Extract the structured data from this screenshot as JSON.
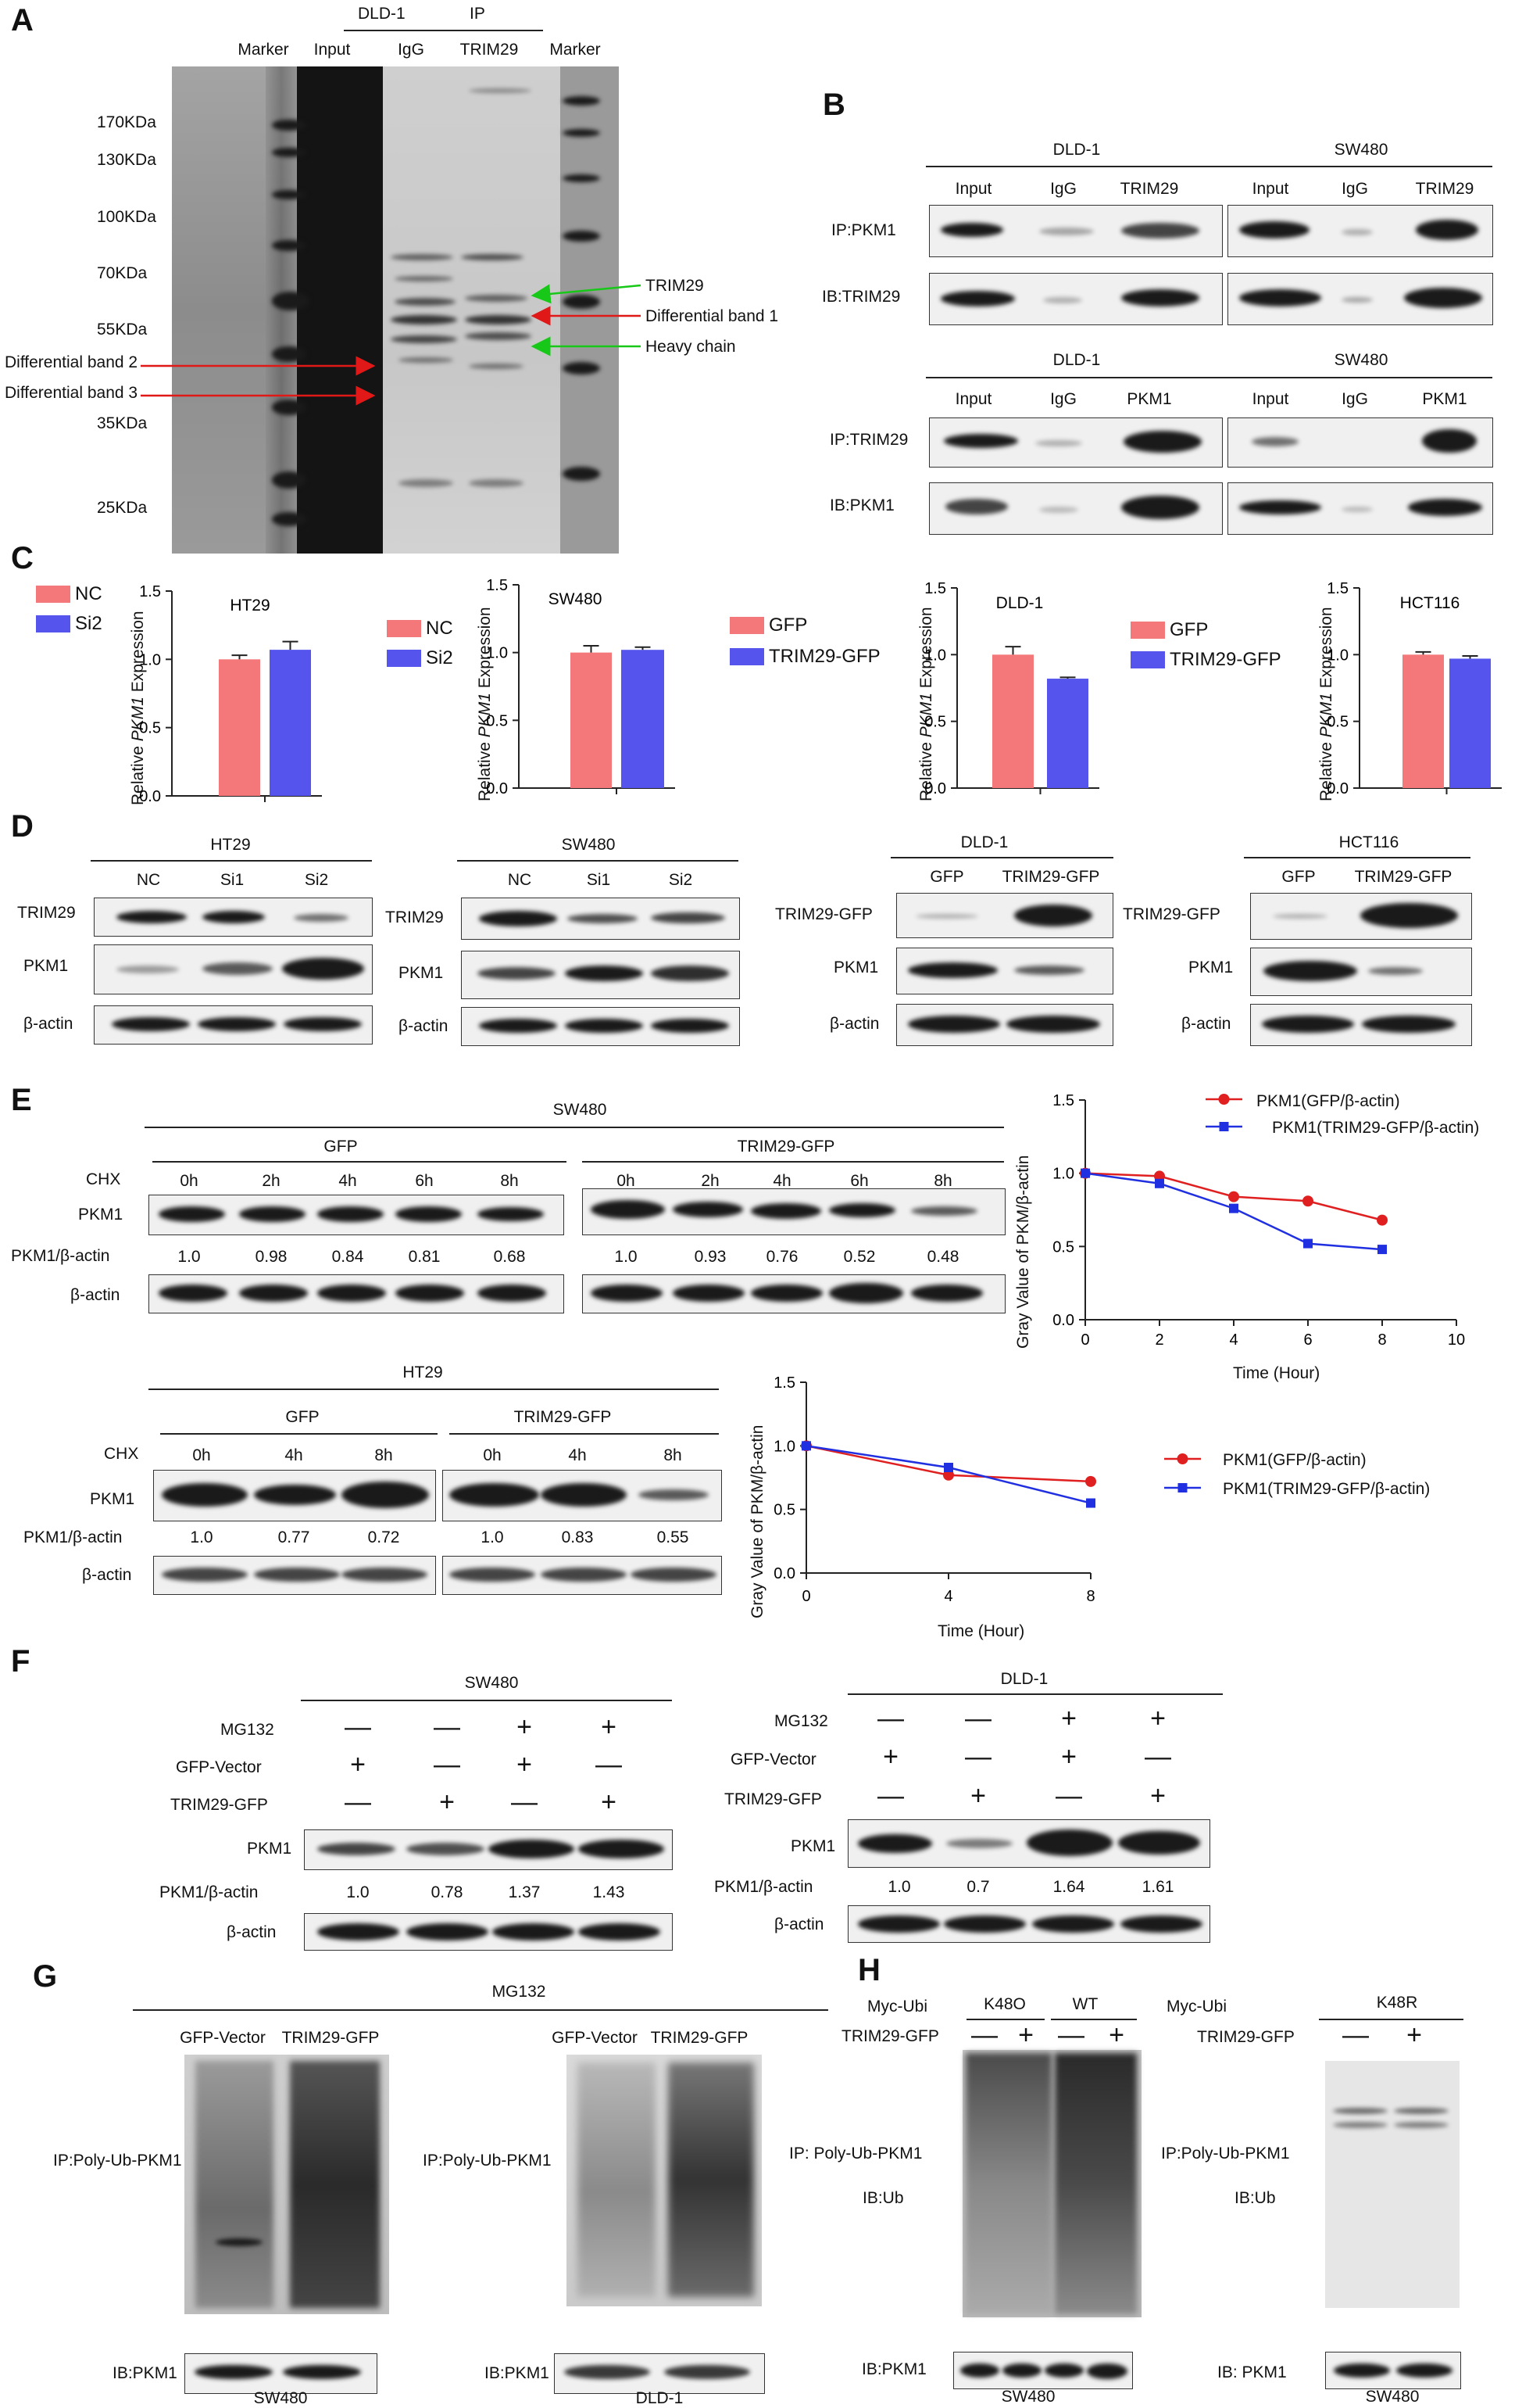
{
  "panelA": {
    "label": "A",
    "cols": [
      "Marker",
      "Input",
      "IgG",
      "TRIM29",
      "Marker"
    ],
    "header_dld": "DLD-1",
    "header_ip": "IP",
    "markers": [
      "170KDa",
      "130KDa",
      "100KDa",
      "70KDa",
      "55KDa",
      "35KDa",
      "25KDa"
    ],
    "left_notes": [
      "Differential band 2",
      "Differential band 3"
    ],
    "right_notes": [
      "TRIM29",
      "Differential band 1",
      "Heavy chain"
    ]
  },
  "panelB": {
    "label": "B",
    "top": {
      "cell1": "DLD-1",
      "cell2": "SW480",
      "lanes": [
        "Input",
        "IgG",
        "TRIM29"
      ],
      "rows": [
        "IP:PKM1",
        "IB:TRIM29"
      ]
    },
    "bottom": {
      "cell1": "DLD-1",
      "cell2": "SW480",
      "lanes": [
        "Input",
        "IgG",
        "PKM1"
      ],
      "rows": [
        "IP:TRIM29",
        "IB:PKM1"
      ]
    }
  },
  "panelC": {
    "label": "C",
    "ylabel_prefix": "Relative ",
    "ylabel_gene": "PKM1",
    "ylabel_suffix": " Expression",
    "pink": "#f4787a",
    "blue": "#5555ee"
  },
  "panelD": {
    "label": "D",
    "HT29": {
      "title": "HT29",
      "lanes": [
        "NC",
        "Si1",
        "Si2"
      ],
      "rows": [
        "TRIM29",
        "PKM1",
        "β-actin"
      ]
    },
    "SW480": {
      "title": "SW480",
      "lanes": [
        "NC",
        "Si1",
        "Si2"
      ],
      "rows": [
        "TRIM29",
        "PKM1",
        "β-actin"
      ]
    },
    "DLD1": {
      "title": "DLD-1",
      "lanes": [
        "GFP",
        "TRIM29-GFP"
      ],
      "rows": [
        "TRIM29-GFP",
        "PKM1",
        "β-actin"
      ]
    },
    "HCT116": {
      "title": "HCT116",
      "lanes": [
        "GFP",
        "TRIM29-GFP"
      ],
      "rows": [
        "TRIM29-GFP",
        "PKM1",
        "β-actin"
      ]
    }
  },
  "panelE": {
    "label": "E",
    "sw": {
      "title": "SW480",
      "g1": "GFP",
      "g2": "TRIM29-GFP",
      "chx": "CHX",
      "times": [
        "0h",
        "2h",
        "4h",
        "6h",
        "8h"
      ],
      "rows": [
        "PKM1",
        "PKM1/β-actin",
        "β-actin"
      ],
      "ratios_gfp": [
        "1.0",
        "0.98",
        "0.84",
        "0.81",
        "0.68"
      ],
      "ratios_trim": [
        "1.0",
        "0.93",
        "0.76",
        "0.52",
        "0.48"
      ]
    },
    "ht": {
      "title": "HT29",
      "g1": "GFP",
      "g2": "TRIM29-GFP",
      "chx": "CHX",
      "times": [
        "0h",
        "4h",
        "8h"
      ],
      "rows": [
        "PKM1",
        "PKM1/β-actin",
        "β-actin"
      ],
      "ratios_gfp": [
        "1.0",
        "0.77",
        "0.72"
      ],
      "ratios_trim": [
        "1.0",
        "0.83",
        "0.55"
      ]
    }
  },
  "panelF": {
    "label": "F",
    "SW480": {
      "title": "SW480",
      "rows": [
        "MG132",
        "GFP-Vector",
        "TRIM29-GFP"
      ],
      "blots": [
        "PKM1",
        "PKM1/β-actin",
        "β-actin"
      ],
      "signs": [
        [
          "—",
          "—",
          "+",
          "+"
        ],
        [
          "+",
          "—",
          "+",
          "—"
        ],
        [
          "—",
          "+",
          "—",
          "+"
        ]
      ],
      "ratios": [
        "1.0",
        "0.78",
        "1.37",
        "1.43"
      ]
    },
    "DLD1": {
      "title": "DLD-1",
      "rows": [
        "MG132",
        "GFP-Vector",
        "TRIM29-GFP"
      ],
      "blots": [
        "PKM1",
        "PKM1/β-actin",
        "β-actin"
      ],
      "signs": [
        [
          "—",
          "—",
          "+",
          "+"
        ],
        [
          "+",
          "—",
          "+",
          "—"
        ],
        [
          "—",
          "+",
          "—",
          "+"
        ]
      ],
      "ratios": [
        "1.0",
        "0.7",
        "1.64",
        "1.61"
      ]
    }
  },
  "panelG": {
    "label": "G",
    "title": "MG132",
    "left": {
      "lanes": [
        "GFP-Vector",
        "TRIM29-GFP"
      ],
      "ip": "IP:Poly-Ub-PKM1",
      "ib": "IB:PKM1",
      "cell": "SW480"
    },
    "right": {
      "lanes": [
        "GFP-Vector",
        "TRIM29-GFP"
      ],
      "ip": "IP:Poly-Ub-PKM1",
      "ib": "IB:PKM1",
      "cell": "DLD-1"
    }
  },
  "panelH": {
    "label": "H",
    "left": {
      "myc": "Myc-Ubi",
      "g1": "K48O",
      "g2": "WT",
      "trim": "TRIM29-GFP",
      "signs": [
        "—",
        "+",
        "—",
        "+"
      ],
      "ip": "IP: Poly-Ub-PKM1",
      "ib": "IB:Ub",
      "ib2": "IB:PKM1",
      "cell": "SW480"
    },
    "right": {
      "myc": "Myc-Ubi",
      "g1": "K48R",
      "trim": "TRIM29-GFP",
      "signs": [
        "—",
        "+"
      ],
      "ip": "IP:Poly-Ub-PKM1",
      "ib": "IB:Ub",
      "ib2": "IB: PKM1",
      "cell": "SW480"
    }
  },
  "chart_data": [
    {
      "type": "bar",
      "title": "HT29",
      "categories": [
        "NC",
        "Si2"
      ],
      "values": [
        1.0,
        1.07
      ],
      "errors": [
        0.03,
        0.06
      ],
      "ylabel": "Relative PKM1 Expression",
      "ylim": [
        0,
        1.5
      ],
      "yticks": [
        "0.0",
        "0.5",
        "1.0",
        "1.5"
      ],
      "colors": [
        "#f4787a",
        "#5555ee"
      ],
      "legend": [
        "NC",
        "Si2"
      ]
    },
    {
      "type": "bar",
      "title": "SW480",
      "categories": [
        "NC",
        "Si2"
      ],
      "values": [
        1.0,
        1.02
      ],
      "errors": [
        0.05,
        0.02
      ],
      "ylabel": "Relative PKM1 Expression",
      "ylim": [
        0,
        1.5
      ],
      "yticks": [
        "0.0",
        "0.5",
        "1.0",
        "1.5"
      ],
      "colors": [
        "#f4787a",
        "#5555ee"
      ],
      "legend": [
        "NC",
        "Si2"
      ]
    },
    {
      "type": "bar",
      "title": "DLD-1",
      "categories": [
        "GFP",
        "TRIM29-GFP"
      ],
      "values": [
        1.0,
        0.82
      ],
      "errors": [
        0.06,
        0.01
      ],
      "ylabel": "Relative PKM1 Expression",
      "ylim": [
        0,
        1.5
      ],
      "yticks": [
        "0.0",
        "0.5",
        "1.0",
        "1.5"
      ],
      "colors": [
        "#f4787a",
        "#5555ee"
      ],
      "legend": [
        "GFP",
        "TRIM29-GFP"
      ]
    },
    {
      "type": "bar",
      "title": "HCT116",
      "categories": [
        "GFP",
        "TRIM29-GFP"
      ],
      "values": [
        1.0,
        0.97
      ],
      "errors": [
        0.02,
        0.02
      ],
      "ylabel": "Relative PKM1 Expression",
      "ylim": [
        0,
        1.5
      ],
      "yticks": [
        "0.0",
        "0.5",
        "1.0",
        "1.5"
      ],
      "colors": [
        "#f4787a",
        "#5555ee"
      ],
      "legend": [
        "GFP",
        "TRIM29-GFP"
      ]
    },
    {
      "type": "line",
      "x": [
        0,
        2,
        4,
        6,
        8
      ],
      "xlim": [
        0,
        10
      ],
      "xticks": [
        "0",
        "2",
        "4",
        "6",
        "8",
        "10"
      ],
      "ylim": [
        0,
        1.5
      ],
      "yticks": [
        "0.0",
        "0.5",
        "1.0",
        "1.5"
      ],
      "xlabel": "Time (Hour)",
      "ylabel": "Gray Value of PKM/β-actin",
      "series": [
        {
          "name": "PKM1(GFP/β-actin)",
          "values": [
            1.0,
            0.98,
            0.84,
            0.81,
            0.68
          ],
          "color": "#e02020",
          "marker": "circle"
        },
        {
          "name": "PKM1(TRIM29-GFP/β-actin)",
          "values": [
            1.0,
            0.93,
            0.76,
            0.52,
            0.48
          ],
          "color": "#2030e0",
          "marker": "square"
        }
      ]
    },
    {
      "type": "line",
      "x": [
        0,
        4,
        8
      ],
      "xlim": [
        0,
        8
      ],
      "xticks": [
        "0",
        "4",
        "8"
      ],
      "ylim": [
        0,
        1.5
      ],
      "yticks": [
        "0.0",
        "0.5",
        "1.0",
        "1.5"
      ],
      "xlabel": "Time (Hour)",
      "ylabel": "Gray Value of PKM/β-actin",
      "series": [
        {
          "name": "PKM1(GFP/β-actin)",
          "values": [
            1.0,
            0.77,
            0.72
          ],
          "color": "#e02020",
          "marker": "circle"
        },
        {
          "name": "PKM1(TRIM29-GFP/β-actin)",
          "values": [
            1.0,
            0.83,
            0.55
          ],
          "color": "#2030e0",
          "marker": "square"
        }
      ]
    }
  ]
}
